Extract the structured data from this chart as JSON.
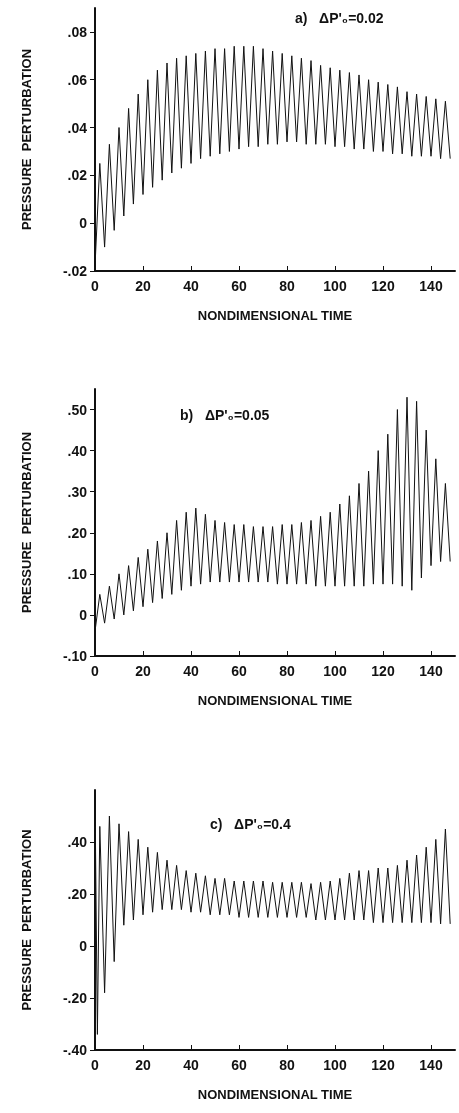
{
  "chart_data": [
    {
      "type": "line",
      "title": "a)   ΔP'₀=0.02",
      "xlabel": "NONDIMENSIONAL TIME",
      "ylabel": "PRESSURE  PERTURBATION",
      "xlim": [
        0,
        150
      ],
      "xticks": [
        0,
        20,
        40,
        60,
        80,
        100,
        120,
        140
      ],
      "ylim": [
        -0.02,
        0.09
      ],
      "yticks": [
        {
          "value": -0.02,
          "label": "-.02"
        },
        {
          "value": 0,
          "label": "0"
        },
        {
          "value": 0.02,
          "label": ".02"
        },
        {
          "value": 0.04,
          "label": ".04"
        },
        {
          "value": 0.06,
          "label": ".06"
        },
        {
          "value": 0.08,
          "label": ".08"
        }
      ],
      "grid": false,
      "marker": "none",
      "series": [
        {
          "color": "#111111",
          "x": [
            0,
            2,
            4,
            6,
            8,
            10,
            12,
            14,
            16,
            18,
            20,
            22,
            24,
            26,
            28,
            30,
            32,
            34,
            36,
            38,
            40,
            42,
            44,
            46,
            48,
            50,
            52,
            54,
            56,
            58,
            60,
            62,
            64,
            66,
            68,
            70,
            72,
            74,
            76,
            78,
            80,
            82,
            84,
            86,
            88,
            90,
            92,
            94,
            96,
            98,
            100,
            102,
            104,
            106,
            108,
            110,
            112,
            114,
            116,
            118,
            120,
            122,
            124,
            126,
            128,
            130,
            132,
            134,
            136,
            138,
            140,
            142,
            144,
            146,
            148
          ],
          "values": [
            -0.018,
            0.025,
            -0.01,
            0.033,
            -0.003,
            0.04,
            0.003,
            0.048,
            0.008,
            0.054,
            0.012,
            0.06,
            0.015,
            0.064,
            0.018,
            0.067,
            0.021,
            0.069,
            0.023,
            0.07,
            0.025,
            0.071,
            0.027,
            0.072,
            0.028,
            0.073,
            0.029,
            0.073,
            0.03,
            0.074,
            0.031,
            0.074,
            0.032,
            0.074,
            0.032,
            0.073,
            0.033,
            0.072,
            0.033,
            0.071,
            0.034,
            0.07,
            0.034,
            0.069,
            0.033,
            0.068,
            0.033,
            0.066,
            0.033,
            0.065,
            0.032,
            0.064,
            0.032,
            0.063,
            0.031,
            0.062,
            0.031,
            0.06,
            0.03,
            0.059,
            0.03,
            0.058,
            0.029,
            0.057,
            0.029,
            0.055,
            0.028,
            0.054,
            0.028,
            0.053,
            0.028,
            0.052,
            0.027,
            0.051,
            0.027
          ]
        }
      ]
    },
    {
      "type": "line",
      "title": "b)   ΔP'₀=0.05",
      "xlabel": "NONDIMENSIONAL TIME",
      "ylabel": "PRESSURE  PERTURBATION",
      "xlim": [
        0,
        150
      ],
      "xticks": [
        0,
        20,
        40,
        60,
        80,
        100,
        120,
        140
      ],
      "ylim": [
        -0.1,
        0.55
      ],
      "yticks": [
        {
          "value": -0.1,
          "label": "-.10"
        },
        {
          "value": 0,
          "label": "0"
        },
        {
          "value": 0.1,
          "label": ".10"
        },
        {
          "value": 0.2,
          "label": ".20"
        },
        {
          "value": 0.3,
          "label": ".30"
        },
        {
          "value": 0.4,
          "label": ".40"
        },
        {
          "value": 0.5,
          "label": ".50"
        }
      ],
      "grid": false,
      "marker": "none",
      "series": [
        {
          "color": "#111111",
          "x": [
            0,
            2,
            4,
            6,
            8,
            10,
            12,
            14,
            16,
            18,
            20,
            22,
            24,
            26,
            28,
            30,
            32,
            34,
            36,
            38,
            40,
            42,
            44,
            46,
            48,
            50,
            52,
            54,
            56,
            58,
            60,
            62,
            64,
            66,
            68,
            70,
            72,
            74,
            76,
            78,
            80,
            82,
            84,
            86,
            88,
            90,
            92,
            94,
            96,
            98,
            100,
            102,
            104,
            106,
            108,
            110,
            112,
            114,
            116,
            118,
            120,
            122,
            124,
            126,
            128,
            130,
            132,
            134,
            136,
            138,
            140,
            142,
            144,
            146,
            148
          ],
          "values": [
            -0.04,
            0.05,
            -0.02,
            0.07,
            -0.01,
            0.1,
            0,
            0.12,
            0.01,
            0.14,
            0.02,
            0.16,
            0.03,
            0.18,
            0.04,
            0.2,
            0.05,
            0.23,
            0.06,
            0.25,
            0.07,
            0.26,
            0.075,
            0.245,
            0.08,
            0.23,
            0.08,
            0.225,
            0.08,
            0.22,
            0.08,
            0.22,
            0.08,
            0.215,
            0.08,
            0.215,
            0.08,
            0.215,
            0.075,
            0.22,
            0.075,
            0.22,
            0.075,
            0.225,
            0.075,
            0.23,
            0.07,
            0.24,
            0.07,
            0.25,
            0.07,
            0.27,
            0.07,
            0.29,
            0.07,
            0.32,
            0.07,
            0.35,
            0.075,
            0.4,
            0.075,
            0.44,
            0.075,
            0.5,
            0.07,
            0.53,
            0.06,
            0.52,
            0.09,
            0.45,
            0.12,
            0.38,
            0.13,
            0.32,
            0.13
          ]
        }
      ]
    },
    {
      "type": "line",
      "title": "c)   ΔP'₀=0.4",
      "xlabel": "NONDIMENSIONAL TIME",
      "ylabel": "PRESSURE  PERTURBATION",
      "xlim": [
        0,
        150
      ],
      "xticks": [
        0,
        20,
        40,
        60,
        80,
        100,
        120,
        140
      ],
      "ylim": [
        -0.4,
        0.6
      ],
      "yticks": [
        {
          "value": -0.4,
          "label": "-.40"
        },
        {
          "value": -0.2,
          "label": "-.20"
        },
        {
          "value": 0,
          "label": "0"
        },
        {
          "value": 0.2,
          "label": ".20"
        },
        {
          "value": 0.4,
          "label": ".40"
        }
      ],
      "grid": false,
      "marker": "none",
      "series": [
        {
          "color": "#111111",
          "x": [
            0,
            1,
            2,
            4,
            6,
            8,
            10,
            12,
            14,
            16,
            18,
            20,
            22,
            24,
            26,
            28,
            30,
            32,
            34,
            36,
            38,
            40,
            42,
            44,
            46,
            48,
            50,
            52,
            54,
            56,
            58,
            60,
            62,
            64,
            66,
            68,
            70,
            72,
            74,
            76,
            78,
            80,
            82,
            84,
            86,
            88,
            90,
            92,
            94,
            96,
            98,
            100,
            102,
            104,
            106,
            108,
            110,
            112,
            114,
            116,
            118,
            120,
            122,
            124,
            126,
            128,
            130,
            132,
            134,
            136,
            138,
            140,
            142,
            144,
            146,
            148
          ],
          "values": [
            0.58,
            -0.34,
            0.46,
            -0.18,
            0.5,
            -0.06,
            0.47,
            0.08,
            0.44,
            0.1,
            0.41,
            0.12,
            0.38,
            0.13,
            0.36,
            0.14,
            0.33,
            0.14,
            0.31,
            0.14,
            0.29,
            0.13,
            0.28,
            0.13,
            0.27,
            0.12,
            0.26,
            0.12,
            0.26,
            0.12,
            0.25,
            0.11,
            0.25,
            0.11,
            0.25,
            0.11,
            0.25,
            0.11,
            0.245,
            0.11,
            0.245,
            0.11,
            0.245,
            0.11,
            0.245,
            0.11,
            0.24,
            0.1,
            0.245,
            0.1,
            0.25,
            0.1,
            0.26,
            0.1,
            0.28,
            0.1,
            0.29,
            0.1,
            0.29,
            0.09,
            0.3,
            0.09,
            0.3,
            0.09,
            0.31,
            0.09,
            0.33,
            0.09,
            0.35,
            0.09,
            0.38,
            0.09,
            0.41,
            0.085,
            0.45,
            0.085
          ]
        }
      ]
    }
  ]
}
